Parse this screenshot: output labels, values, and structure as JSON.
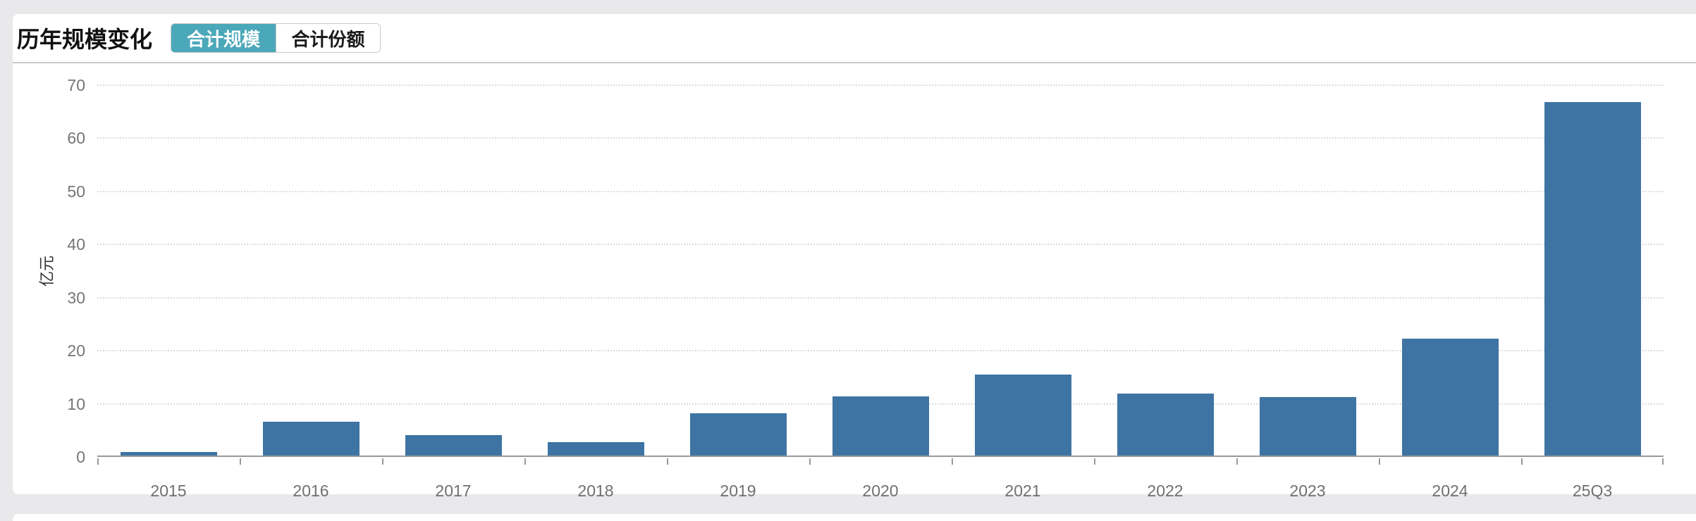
{
  "header": {
    "title": "历年规模变化",
    "tabs": [
      {
        "label": "合计规模",
        "active": true
      },
      {
        "label": "合计份额",
        "active": false
      }
    ]
  },
  "chart_data": {
    "type": "bar",
    "title": "历年规模变化",
    "categories": [
      "2015",
      "2016",
      "2017",
      "2018",
      "2019",
      "2020",
      "2021",
      "2022",
      "2023",
      "2024",
      "25Q3"
    ],
    "values": [
      0.7,
      6.3,
      3.9,
      2.5,
      8.0,
      11.2,
      15.2,
      11.7,
      11.0,
      22.0,
      66.5
    ],
    "xlabel": "",
    "ylabel": "亿元",
    "ylim": [
      0,
      70
    ],
    "yticks": [
      0,
      10,
      20,
      30,
      40,
      50,
      60,
      70
    ],
    "grid": "horizontal-dotted",
    "legend": "none",
    "bar_color": "#3e74a3"
  },
  "colors": {
    "accent_teal": "#4aa8b9",
    "bar_blue": "#3e74a3",
    "page_background": "#e9e9eb",
    "axis_line": "#97999c",
    "gridline": "#dcdcde",
    "tick_text": "#707070"
  }
}
